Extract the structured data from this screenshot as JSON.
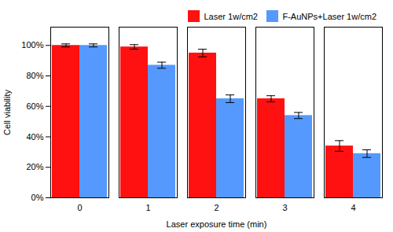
{
  "chart_data": {
    "type": "bar",
    "xlabel": "Laser exposure time (min)",
    "ylabel": "Cell viability",
    "categories": [
      0,
      1,
      2,
      3,
      4
    ],
    "series": [
      {
        "name": "Laser 1w/cm2",
        "color": "#FF1111",
        "values": [
          100,
          99,
          95,
          65,
          34
        ],
        "errors": [
          1.0,
          1.5,
          2.5,
          2.0,
          3.5
        ]
      },
      {
        "name": "F-AuNPs+Laser 1w/cm2",
        "color": "#5599FF",
        "values": [
          100,
          87,
          65,
          54,
          29
        ],
        "errors": [
          1.0,
          2.0,
          2.5,
          2.0,
          2.5
        ]
      }
    ],
    "ylim": [
      0,
      112
    ],
    "yticks": [
      {
        "value": 0,
        "label": "0%"
      },
      {
        "value": 20,
        "label": "20%"
      },
      {
        "value": 40,
        "label": "40%"
      },
      {
        "value": 60,
        "label": "60%"
      },
      {
        "value": 80,
        "label": "80%"
      },
      {
        "value": 100,
        "label": "100%"
      }
    ],
    "legend": "upper right",
    "grid": false
  }
}
